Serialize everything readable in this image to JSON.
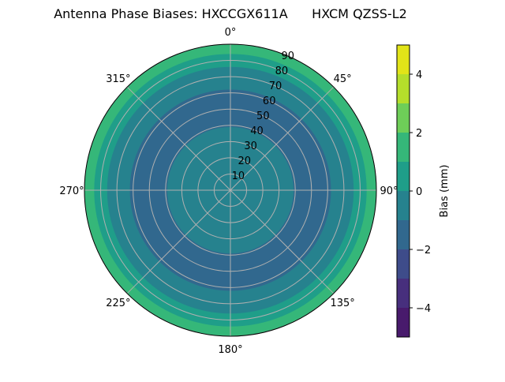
{
  "chart_data": {
    "type": "polar-contour",
    "title": "Antenna Phase Biases: HXCCGX611A      HXCM QZSS-L2",
    "theta_direction": "clockwise",
    "theta_zero": "top",
    "theta_ticks": [
      "0°",
      "45°",
      "90°",
      "135°",
      "180°",
      "225°",
      "270°",
      "315°"
    ],
    "r_ticks": [
      "10",
      "20",
      "30",
      "40",
      "50",
      "60",
      "70",
      "80",
      "90"
    ],
    "rlim": [
      0,
      90
    ],
    "grid": true,
    "colorbar": {
      "label": "Bias (mm)",
      "range": [
        -5,
        5
      ],
      "levels": [
        -5,
        -4,
        -3,
        -2,
        -1,
        0,
        1,
        2,
        3,
        4,
        5
      ],
      "ticks": [
        "4",
        "2",
        "0",
        "−2",
        "−4"
      ],
      "tick_values": [
        4,
        2,
        0,
        -2,
        -4
      ],
      "colors": [
        "#481a6c",
        "#472f7d",
        "#3e4c8a",
        "#31688e",
        "#26828e",
        "#1f9e89",
        "#35b779",
        "#6ece58",
        "#b5de2b",
        "#e2e418"
      ]
    },
    "bands": [
      {
        "range": [
          -1,
          0
        ],
        "r_from": 0,
        "r_to": 39
      },
      {
        "range": [
          -2,
          -1
        ],
        "r_from": 39,
        "r_to": 62
      },
      {
        "range": [
          -1,
          0
        ],
        "r_from": 62,
        "r_to": 76
      },
      {
        "range": [
          0,
          1
        ],
        "r_from": 76,
        "r_to": 84
      },
      {
        "range": [
          1,
          2
        ],
        "r_from": 84,
        "r_to": 90
      }
    ]
  }
}
